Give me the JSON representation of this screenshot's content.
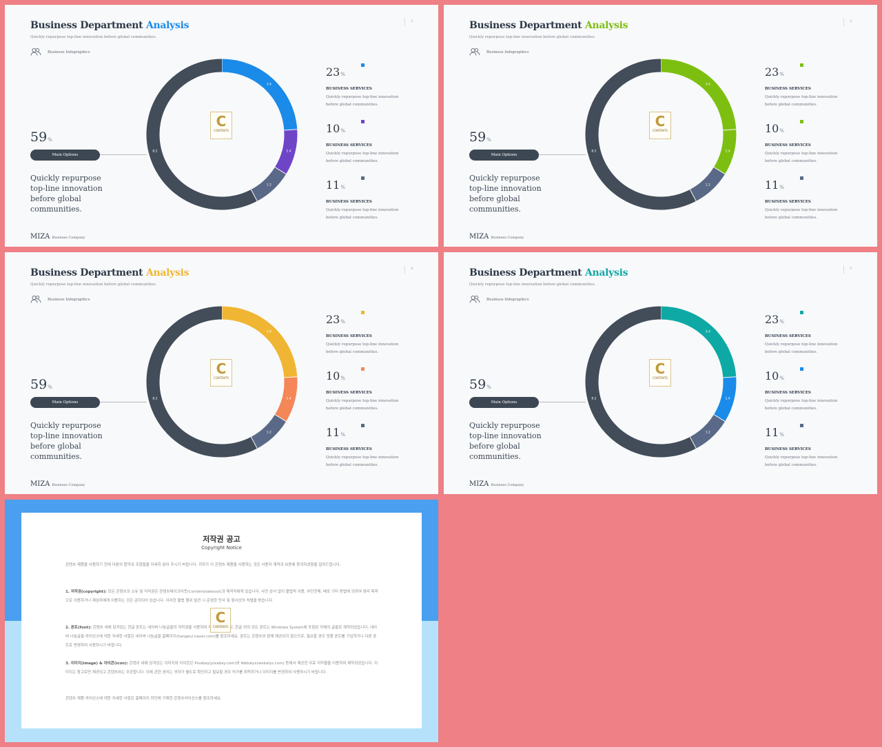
{
  "slides": [
    {
      "title_main": "Business Department",
      "title_accent": "Analysis",
      "accent": "#1a8be8",
      "page_num": "2",
      "subtitle": "Quickly repurpose top-line innovation before global communities.",
      "info_label": "Business Infographics",
      "big_number": "59",
      "big_unit": "%",
      "pill_label": "Main Options",
      "description": "Quickly repurpose top-line innovation before global communities.",
      "brand": "MIZA",
      "brand_sub": "Business Company",
      "logo_letter": "C",
      "logo_text": "CONTENTS",
      "donut": {
        "segments": [
          {
            "value": 3.4,
            "label": "3.4",
            "color": "#1a8be8"
          },
          {
            "value": 1.4,
            "label": "1.4",
            "color": "#6f45c8"
          },
          {
            "value": 1.2,
            "label": "1.2",
            "color": "#5a6987"
          },
          {
            "value": 8.2,
            "label": "8.2",
            "color": "#424d59"
          }
        ]
      },
      "stats": [
        {
          "number": "23",
          "unit": "%",
          "dot_color": "#1a8be8",
          "heading": "BUSINESS SERVICES",
          "desc": "Quickly repurpose top-line innovation before global communities."
        },
        {
          "number": "10",
          "unit": "%",
          "dot_color": "#6f45c8",
          "heading": "BUSINESS SERVICES",
          "desc": "Quickly repurpose top-line innovation before global communities."
        },
        {
          "number": "11",
          "unit": "%",
          "dot_color": "#5a6987",
          "heading": "BUSINESS SERVICES",
          "desc": "Quickly repurpose top-line innovation before global communities."
        }
      ]
    },
    {
      "title_main": "Business Department",
      "title_accent": "Analysis",
      "accent": "#7dbf11",
      "page_num": "3",
      "subtitle": "Quickly repurpose top-line innovation before global communities.",
      "info_label": "Business Infographics",
      "big_number": "59",
      "big_unit": "%",
      "pill_label": "Main Options",
      "description": "Quickly repurpose top-line innovation before global communities.",
      "brand": "MIZA",
      "brand_sub": "Business Company",
      "logo_letter": "C",
      "logo_text": "CONTENTS",
      "donut": {
        "segments": [
          {
            "value": 3.4,
            "label": "3.4",
            "color": "#7dbf11"
          },
          {
            "value": 1.4,
            "label": "1.4",
            "color": "#7dbf11"
          },
          {
            "value": 1.2,
            "label": "1.2",
            "color": "#5a6987"
          },
          {
            "value": 8.2,
            "label": "8.2",
            "color": "#424d59"
          }
        ]
      },
      "stats": [
        {
          "number": "23",
          "unit": "%",
          "dot_color": "#7dbf11",
          "heading": "BUSINESS SERVICES",
          "desc": "Quickly repurpose top-line innovation before global communities."
        },
        {
          "number": "10",
          "unit": "%",
          "dot_color": "#7dbf11",
          "heading": "BUSINESS SERVICES",
          "desc": "Quickly repurpose top-line innovation before global communities."
        },
        {
          "number": "11",
          "unit": "%",
          "dot_color": "#5a6987",
          "heading": "BUSINESS SERVICES",
          "desc": "Quickly repurpose top-line innovation before global communities."
        }
      ]
    },
    {
      "title_main": "Business Department",
      "title_accent": "Analysis",
      "accent": "#f0b532",
      "page_num": "4",
      "subtitle": "Quickly repurpose top-line innovation before global communities.",
      "info_label": "Business Infographics",
      "big_number": "59",
      "big_unit": "%",
      "pill_label": "Main Options",
      "description": "Quickly repurpose top-line innovation before global communities.",
      "brand": "MIZA",
      "brand_sub": "Business Company",
      "logo_letter": "C",
      "logo_text": "CONTENTS",
      "donut": {
        "segments": [
          {
            "value": 3.4,
            "label": "3.4",
            "color": "#f0b532"
          },
          {
            "value": 1.4,
            "label": "1.4",
            "color": "#f48657"
          },
          {
            "value": 1.2,
            "label": "1.2",
            "color": "#5a6987"
          },
          {
            "value": 8.2,
            "label": "8.2",
            "color": "#424d59"
          }
        ]
      },
      "stats": [
        {
          "number": "23",
          "unit": "%",
          "dot_color": "#f0b532",
          "heading": "BUSINESS SERVICES",
          "desc": "Quickly repurpose top-line innovation before global communities."
        },
        {
          "number": "10",
          "unit": "%",
          "dot_color": "#f48657",
          "heading": "BUSINESS SERVICES",
          "desc": "Quickly repurpose top-line innovation before global communities."
        },
        {
          "number": "11",
          "unit": "%",
          "dot_color": "#5a6987",
          "heading": "BUSINESS SERVICES",
          "desc": "Quickly repurpose top-line innovation before global communities."
        }
      ]
    },
    {
      "title_main": "Business Department",
      "title_accent": "Analysis",
      "accent": "#0ea9a5",
      "page_num": "5",
      "subtitle": "Quickly repurpose top-line innovation before global communities.",
      "info_label": "Business Infographics",
      "big_number": "59",
      "big_unit": "%",
      "pill_label": "Main Options",
      "description": "Quickly repurpose top-line innovation before global communities.",
      "brand": "MIZA",
      "brand_sub": "Business Company",
      "logo_letter": "C",
      "logo_text": "CONTENTS",
      "donut": {
        "segments": [
          {
            "value": 3.4,
            "label": "3.4",
            "color": "#0ea9a5"
          },
          {
            "value": 1.4,
            "label": "1.4",
            "color": "#1a8be8"
          },
          {
            "value": 1.2,
            "label": "1.2",
            "color": "#5a6987"
          },
          {
            "value": 8.2,
            "label": "8.2",
            "color": "#424d59"
          }
        ]
      },
      "stats": [
        {
          "number": "23",
          "unit": "%",
          "dot_color": "#0ea9a5",
          "heading": "BUSINESS SERVICES",
          "desc": "Quickly repurpose top-line innovation before global communities."
        },
        {
          "number": "10",
          "unit": "%",
          "dot_color": "#1a8be8",
          "heading": "BUSINESS SERVICES",
          "desc": "Quickly repurpose top-line innovation before global communities."
        },
        {
          "number": "11",
          "unit": "%",
          "dot_color": "#5a6987",
          "heading": "BUSINESS SERVICES",
          "desc": "Quickly repurpose top-line innovation before global communities."
        }
      ]
    }
  ],
  "notice": {
    "title": "저작권 공고",
    "subtitle": "Copyright Notice",
    "intro": "콘텐츠 제품을 사용하기 전에 다음의 합약과 조항들을 자세히 읽어 주시기 바랍니다. 귀하가 이 콘텐츠 제품을 사용하는 것은 사용자 계약과 보증에 동의하셨음을 알려드립니다.",
    "sec1_head": "1. 저작권(copyright):",
    "sec1_body": " 모든 콘텐츠의 소유 및 저작권은 콘텐츠테이크아웃(Contentstakeout)과 제작자에게 있습니다. 사전 승낙 없이 불법적 이용, 무단전재, 배포 기타 방법에 의하여 영리 목적으로 이용하거나 제삼자에게 이용하는 것은 금지되어 있습니다. 이러한 불법 행위 발견 시 준엄한 민사 및 형사상의 처벌을 받습니다.",
    "sec2_head": "2. 폰트(font):",
    "sec2_body": " 콘텐츠 내에 담겨있는 한글 폰트는 네이버 나눔글꼴의 저작권을 사용하여 제작되었습니다. 한글 외의 모든 폰트는 Windows System에 포함된 자체의 글꼴로 제작되었습니다. 네이버 나눔글꼴 라이선스에 대한 자세한 사항은 네이버 나눔글꼴 홈페이지(hangeul.naver.com)를 참조하세요. 폰트는 콘텐츠와 함께 제공되지 않으므로, 필요할 경우 정품 폰트를 구입하거나 다른 폰트로 변경하여 사용하시기 바랍니다.",
    "sec3_head": "3. 이미지(image) & 아이콘(icon):",
    "sec3_body": " 콘텐츠 내에 담겨있는 이미지와 아이콘은 Pixabay(pixabay.com)와 Webalys(webalys.com) 등에서 제공한 무료 저작물을 이용하여 제작되었습니다. 이미지는 참고로만 제공되고 콘텐츠와는 무관합니다. 이에 관한 권리는 귀하가 별도로 확인하고 필요할 경우 허가를 취득하거나 이미지를 변경하여 사용하시기 바랍니다.",
    "outro": "콘텐츠 제품 라이선스에 대한 자세한 사항은 홈페이지 하단에 기재한 콘텐츠라이선스를 참조하세요.",
    "logo_letter": "C",
    "logo_text": "CONTENTS"
  }
}
